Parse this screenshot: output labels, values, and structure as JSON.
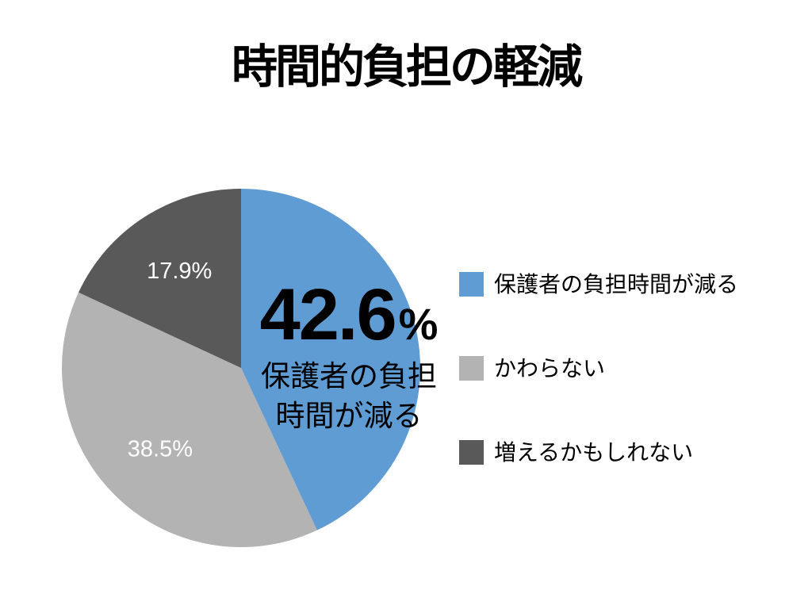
{
  "page": {
    "background": "#ffffff",
    "text_color": "#000000"
  },
  "chart_data": {
    "type": "pie",
    "title": "時間的負担の軽減",
    "start_angle_deg": 0,
    "direction": "clockwise",
    "legend_position": "right",
    "inside_label_color": "#ffffff",
    "slices": [
      {
        "label": "保護者の負担時間が減る",
        "value": 42.6,
        "display": "42.6%",
        "color": "#5E9CD3",
        "label_style": "center-callout"
      },
      {
        "label": "かわらない",
        "value": 38.5,
        "display": "38.5%",
        "color": "#B3B3B3",
        "label_style": "inside"
      },
      {
        "label": "増えるかもしれない",
        "value": 17.9,
        "display": "17.9%",
        "color": "#595959",
        "label_style": "inside"
      }
    ],
    "callout": {
      "value": "42.6",
      "percent_sign": "%",
      "label_line1": "保護者の負担",
      "label_line2": "時間が減る"
    }
  }
}
